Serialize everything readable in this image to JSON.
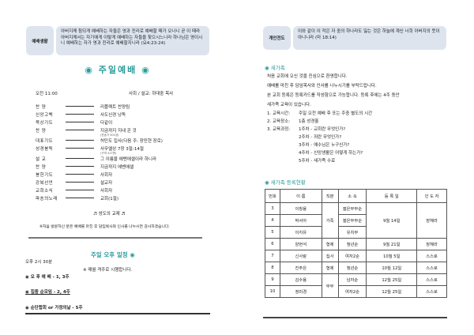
{
  "left": {
    "verse_label": "예배생활",
    "verse_text": "아버지께 참되게 예배하는 자들은 영과 진리로 예배할 때가 오나니 곧 이 때라 아버지께서는 자기에게 이렇게 예배하는 자들을 찾으시느니라 하나님은 영이시니 예배하는 자가 영과 진리로 예배할지니라 (요4:23-24)",
    "title": "주일예배",
    "time": "오전 11:00",
    "leader": "사회 / 설교: 하대중 목사",
    "order": [
      {
        "name": "찬    양",
        "value": "리플렉트 찬양팀"
      },
      {
        "name": "신앙고백",
        "value": "사도신경 낭독"
      },
      {
        "name": "묵상기도",
        "value": "다같이"
      },
      {
        "name": "찬    양",
        "value": "지금까지 지내 온 것",
        "note": "(찬송가 301장)"
      },
      {
        "name": "대표기도",
        "value": "허민도 집사(다음 주: 장민현 장로)"
      },
      {
        "name": "성경봉독",
        "value": "사무엘상 7장 3절-14절",
        "note": "(구약 417면)"
      },
      {
        "name": "설    교",
        "value": "그 이름을 에벤에셀이라 하니라"
      },
      {
        "name": "찬    양",
        "value": "지금까지 에벤에셀"
      },
      {
        "name": "봉헌기도",
        "value": "사회자"
      },
      {
        "name": "강복선언",
        "value": "설교자"
      },
      {
        "name": "교회소식",
        "value": "사회자"
      },
      {
        "name": "파송의노래",
        "value": "교회(1절)"
      }
    ],
    "fellowship": "♬ 성도의 교제 ♬",
    "welcome_note": "※처음 방문하신 분은 예배를 마친 후 담임목사와 인사를 나누시면 감사하겠습니다.",
    "afternoon_title": "주일 오후 일정",
    "afternoon_time": "오후 2시 30분",
    "afternoon_note": "※ 매월 격주로 시행합니다.",
    "afternoon_items": [
      "오 후 예 배 - 1, 3주",
      "집중 순모임 - 2, 4주",
      "순단합회 or 가정의날 - 5주"
    ]
  },
  "right": {
    "verse_label": "개인전도",
    "verse_text": "이와 같이 이 작은 자 중의 하나라도 잃는 것은 하늘에 계신 너희 아버지의 뜻이 아니니라 (마 18:14)",
    "newcomer_title": "새가족",
    "paragraphs": [
      "처음 교회에 오신 것을 진심으로 환영합니다.",
      "예배를 마친 후 담임목사와 인사를 나누시기를 부탁드립니다.",
      "본 교회 등록은 등록카드를 작성함으로 가능합니다. 등록 후에는 4주 동안",
      "새가족 교육이 있습니다."
    ],
    "edu": [
      {
        "label": "1. 교육시간:",
        "text": "주일 오전 예배 후 또는 주중 별도의 시간"
      },
      {
        "label": "2. 교육장소:",
        "text": "1층 성경홀"
      },
      {
        "label": "3. 교육과정:",
        "text": "1주차 - 교회란 무엇인가?"
      },
      {
        "label": "",
        "text": "2주차 - 죄란 무엇인가?"
      },
      {
        "label": "",
        "text": "3주차 - 예수님은 누구신가?"
      },
      {
        "label": "",
        "text": "4주차 - 신앙생활은 어떻게 하는가?"
      },
      {
        "label": "",
        "text": "5주차 - 새가족 수료"
      }
    ],
    "registry_title": "새가족 등록현황",
    "table": {
      "headers": [
        "번호",
        "이  름",
        "직분",
        "소  속",
        "등 록 일",
        "인 도 자"
      ],
      "rows": [
        [
          "3",
          "이창용",
          "가족",
          "젊은부부순",
          "9월 14일",
          "장혜라"
        ],
        [
          "4",
          "박서아",
          null,
          "젊은부부순",
          null,
          null
        ],
        [
          "5",
          "이지유",
          null,
          "유치부",
          null,
          null
        ],
        [
          "6",
          "양현석",
          "형제",
          "청년순",
          "9월 21일",
          "장혜라"
        ],
        [
          "7",
          "신사랑",
          "집사",
          "여자2순",
          "10월 5일",
          "스스로"
        ],
        [
          "8",
          "진주은",
          "형제",
          "청년순",
          "10월 12일",
          "스스로"
        ],
        [
          "9",
          "김수용",
          "부부",
          "남자순",
          "12월 25일",
          "스스로"
        ],
        [
          "10",
          "정미경",
          null,
          "여자2순",
          "12월 25일",
          "스스로"
        ]
      ]
    }
  },
  "colors": {
    "accent": "#2a9a9a",
    "box": "#dde4ee"
  }
}
